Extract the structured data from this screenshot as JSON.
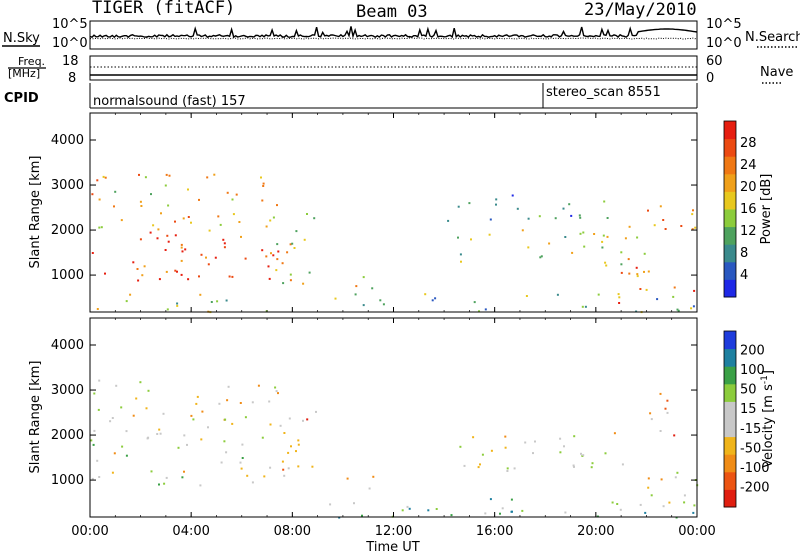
{
  "header": {
    "radar": "TIGER (fitACF)",
    "beam": "Beam 03",
    "date": "23/May/2010"
  },
  "top_panels": {
    "nsky_label": "N.Sky",
    "nsky_ticks": [
      "10^5",
      "10^0"
    ],
    "nsearch_label": "N.Search",
    "nsearch_ticks": [
      "10^5",
      "10^0"
    ],
    "freq_label_1": "Freq.",
    "freq_label_2": "[MHz]",
    "freq_ticks": [
      "18",
      "8"
    ],
    "nave_label": "Nave",
    "nave_ticks": [
      "60",
      "0"
    ],
    "cpid_label": "CPID",
    "cpid_modes": [
      {
        "name": "normalsound (fast) 157",
        "start_hour": 0
      },
      {
        "name": "stereo_scan 8551",
        "start_hour": 18.0
      }
    ]
  },
  "chart_data": [
    {
      "type": "heatmap",
      "panel": "power",
      "ylabel": "Slant Range [km]",
      "yticks": [
        1000,
        2000,
        3000,
        4000
      ],
      "ylim": [
        180,
        4600
      ],
      "xlim_hours": [
        0,
        24
      ],
      "colorbar": {
        "label": "Power [dB]",
        "ticks": [
          "4",
          "8",
          "12",
          "16",
          "20",
          "24",
          "28"
        ],
        "colors": [
          "#1e28e6",
          "#2a58c0",
          "#3a8a8c",
          "#4ea25e",
          "#8ccc3c",
          "#e8c81e",
          "#f0a01a",
          "#f07814",
          "#ec4a12",
          "#e61e10"
        ]
      },
      "scatter_regions": [
        {
          "t": [
            0.0,
            7.4
          ],
          "r": [
            180,
            600
          ],
          "level": 0.45
        },
        {
          "t": [
            0.0,
            8.2
          ],
          "r": [
            900,
            2000
          ],
          "level": 0.92
        },
        {
          "t": [
            0.0,
            7.5
          ],
          "r": [
            2000,
            3300
          ],
          "level": 0.65
        },
        {
          "t": [
            7.3,
            9.0
          ],
          "r": [
            800,
            2700
          ],
          "level": 0.55
        },
        {
          "t": [
            9.2,
            24.0
          ],
          "r": [
            180,
            600
          ],
          "level": 0.35
        },
        {
          "t": [
            9.8,
            11.4
          ],
          "r": [
            700,
            1100
          ],
          "level": 0.5
        },
        {
          "t": [
            14.5,
            22.0
          ],
          "r": [
            1200,
            2100
          ],
          "level": 0.5
        },
        {
          "t": [
            14.0,
            21.0
          ],
          "r": [
            2100,
            2800
          ],
          "level": 0.3
        },
        {
          "t": [
            20.5,
            24.0
          ],
          "r": [
            400,
            1200
          ],
          "level": 0.8
        },
        {
          "t": [
            22.0,
            24.0
          ],
          "r": [
            2000,
            3000
          ],
          "level": 0.7
        }
      ]
    },
    {
      "type": "heatmap",
      "panel": "velocity",
      "ylabel": "Slant Range [km]",
      "yticks": [
        1000,
        2000,
        3000,
        4000
      ],
      "ylim": [
        180,
        4600
      ],
      "xlim_hours": [
        0,
        24
      ],
      "colorbar": {
        "label": "Velocity [m s^-1]",
        "ticks": [
          "-200",
          "-100",
          "-50",
          "-15",
          "15",
          "50",
          "100",
          "200"
        ],
        "colors": [
          "#e01e10",
          "#ec5412",
          "#f08c16",
          "#f0b41a",
          "#c8c8c8",
          "#c8c8c8",
          "#8ccc3c",
          "#3aa046",
          "#1e80a0",
          "#1e3cdc"
        ]
      },
      "scatter_regions": [
        {
          "t": [
            0.0,
            8.2
          ],
          "r": [
            900,
            2000
          ],
          "level": 0.5
        },
        {
          "t": [
            0.0,
            7.5
          ],
          "r": [
            2000,
            3300
          ],
          "level": 0.45
        },
        {
          "t": [
            7.3,
            9.0
          ],
          "r": [
            800,
            2700
          ],
          "level": 0.3
        },
        {
          "t": [
            9.2,
            24.0
          ],
          "r": [
            180,
            600
          ],
          "level": 0.65
        },
        {
          "t": [
            9.8,
            11.4
          ],
          "r": [
            700,
            1100
          ],
          "level": 0.5
        },
        {
          "t": [
            14.5,
            22.0
          ],
          "r": [
            1200,
            2100
          ],
          "level": 0.5
        },
        {
          "t": [
            20.5,
            24.0
          ],
          "r": [
            400,
            1200
          ],
          "level": 0.5
        },
        {
          "t": [
            22.0,
            24.0
          ],
          "r": [
            2000,
            3000
          ],
          "level": 0.3
        }
      ]
    }
  ],
  "xaxis": {
    "label": "Time UT",
    "ticks": [
      "00:00",
      "04:00",
      "08:00",
      "12:00",
      "16:00",
      "20:00",
      "00:00"
    ]
  }
}
